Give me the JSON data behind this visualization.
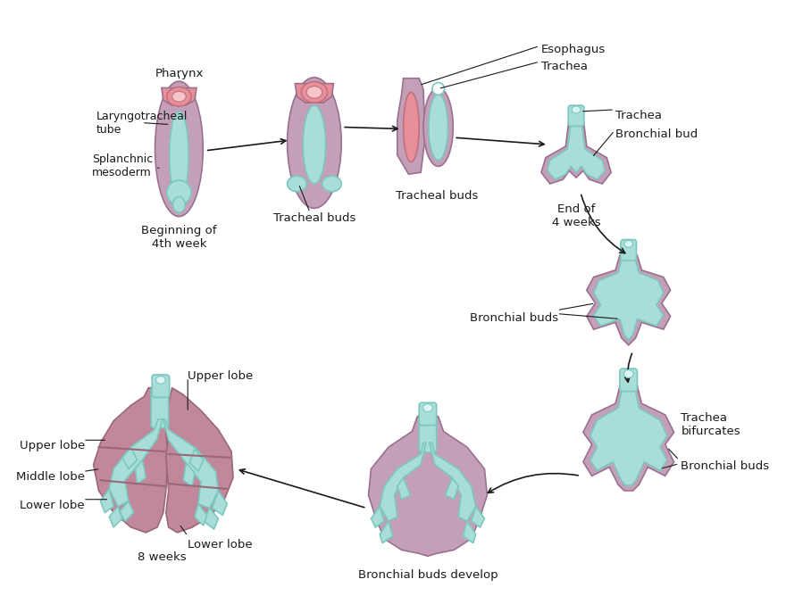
{
  "bg_color": "#ffffff",
  "teal_fill": "#a8ddd8",
  "teal_dark": "#7cc8c0",
  "pink_fill": "#e8909a",
  "mauve_fill": "#c4a0b8",
  "mauve_dark": "#9a7090",
  "lung_fill": "#c0889a",
  "tube_color": "#5bbfb8",
  "arrow_color": "#1a1a1a",
  "text_color": "#1a1a1a",
  "line_color": "#2a2a2a",
  "labels": {
    "pharynx": "Pharynx",
    "laryngotracheal": "Laryngotracheal\ntube",
    "splanchnic": "Splanchnic\nmesoderm",
    "beginning": "Beginning of\n4th week",
    "tracheal_buds1": "Tracheal buds",
    "esophagus": "Esophagus",
    "trachea_label": "Trachea",
    "tracheal_buds2": "Tracheal buds",
    "trachea2": "Trachea",
    "bronchial_bud": "Bronchial bud",
    "end_4weeks": "End of\n4 weeks",
    "bronchial_buds1": "Bronchial buds",
    "trachea_bifurcates": "Trachea\nbifurcates",
    "bronchial_buds2": "Bronchial buds",
    "bronchial_buds_develop": "Bronchial buds develop",
    "upper_lobe_left": "Upper lobe",
    "middle_lobe": "Middle lobe",
    "lower_lobe_left": "Lower lobe",
    "upper_lobe_right": "Upper lobe",
    "lower_lobe_right": "Lower lobe",
    "eight_weeks": "8 weeks"
  },
  "figsize": [
    8.8,
    6.68
  ],
  "dpi": 100
}
